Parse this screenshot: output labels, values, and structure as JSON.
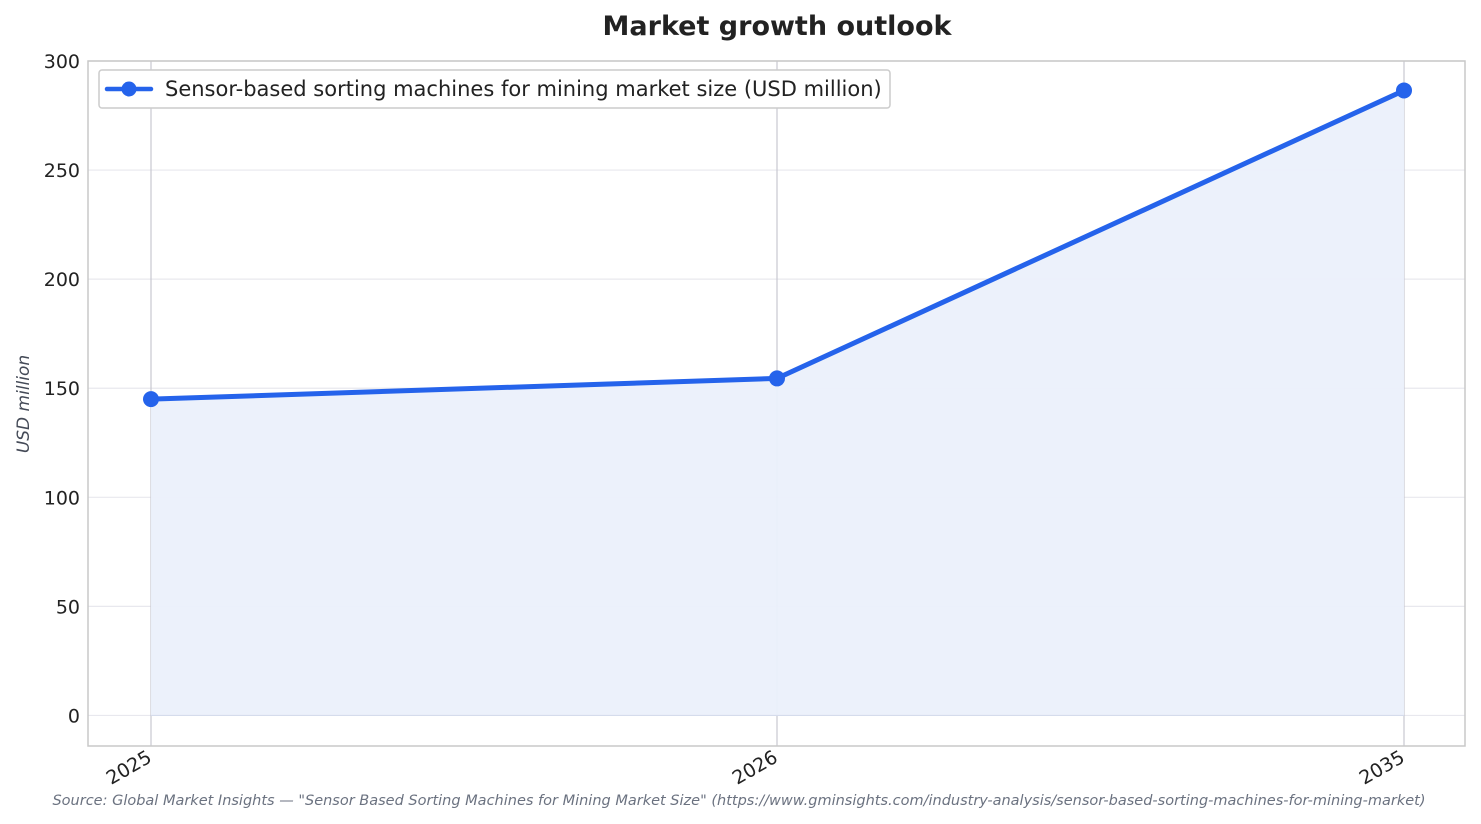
{
  "chart_data": {
    "type": "area",
    "title": "Market growth outlook",
    "xlabel": "",
    "ylabel": "USD million",
    "categories": [
      "2025",
      "2026",
      "2035"
    ],
    "series": [
      {
        "name": "Sensor-based sorting machines for mining market size (USD million)",
        "values": [
          145,
          154.5,
          286.5
        ]
      }
    ],
    "ylim": [
      -14,
      300
    ],
    "yticks": [
      0,
      50,
      100,
      150,
      200,
      250,
      300
    ],
    "grid": true,
    "legend_position": "top-left",
    "colors": {
      "line": "#2563eb",
      "fill": "#ebf0fb",
      "grid": "#e8e8ee",
      "vgrid": "#c8c8d0",
      "frame": "#c8c8c8"
    },
    "source": "Source: Global Market Insights — \"Sensor Based Sorting Machines for Mining Market Size\" (https://www.gminsights.com/industry-analysis/sensor-based-sorting-machines-for-mining-market)"
  }
}
